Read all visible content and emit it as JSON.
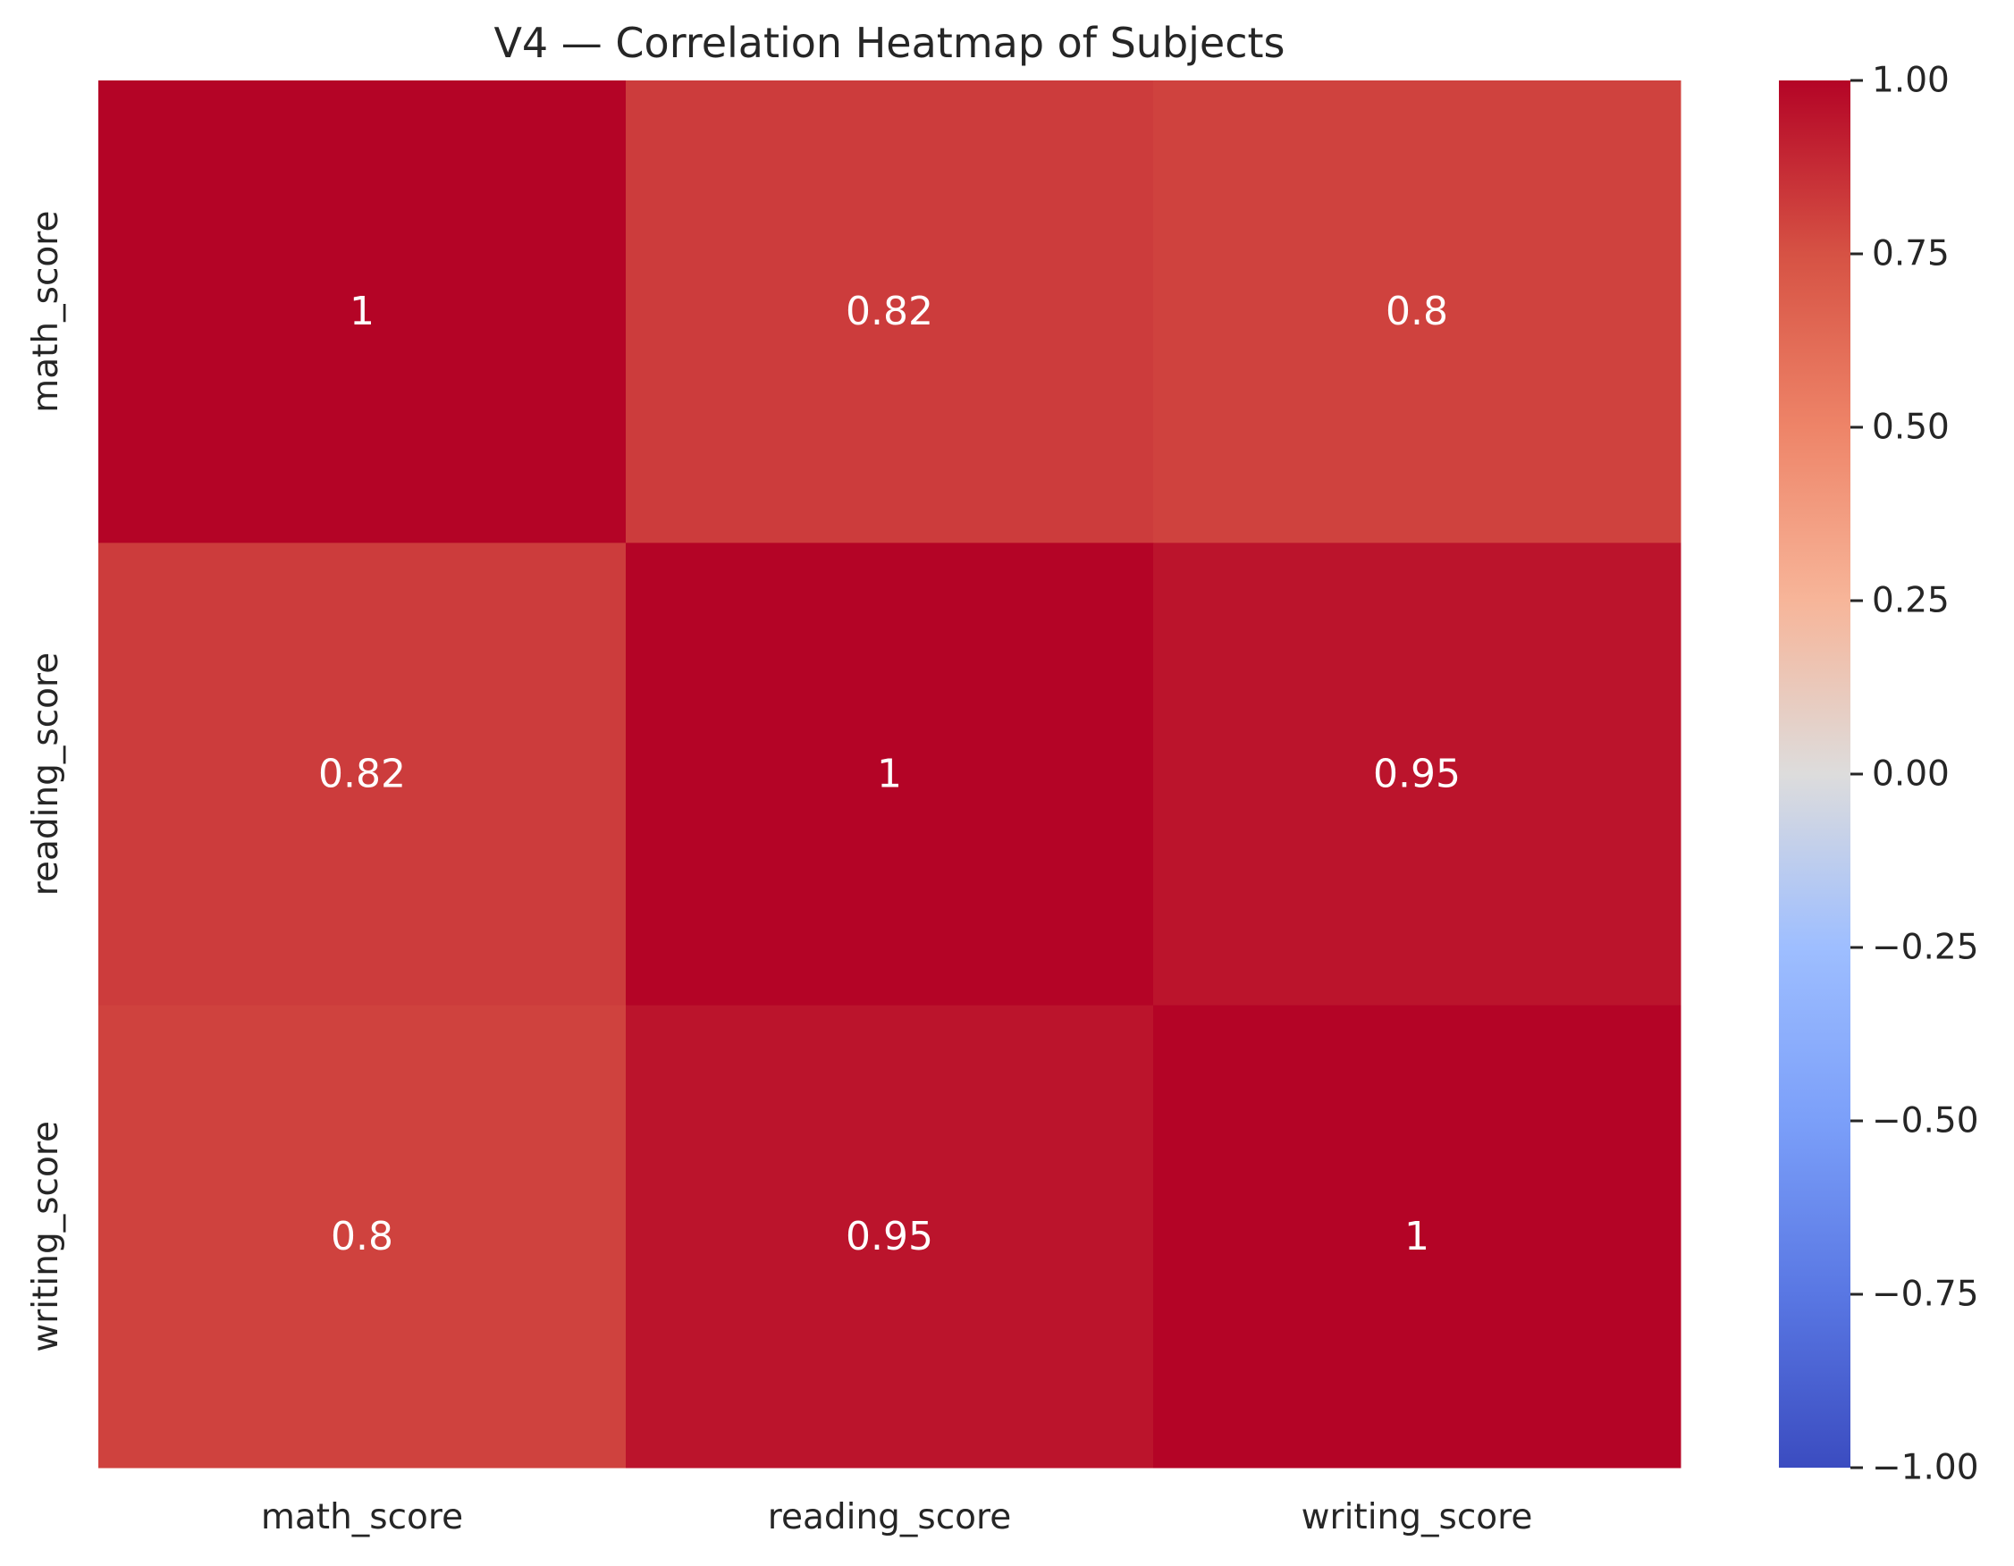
{
  "chart_data": {
    "type": "heatmap",
    "title": "V4 — Correlation Heatmap of Subjects",
    "x_labels": [
      "math_score",
      "reading_score",
      "writing_score"
    ],
    "y_labels": [
      "math_score",
      "reading_score",
      "writing_score"
    ],
    "values": [
      [
        1,
        0.82,
        0.8
      ],
      [
        0.82,
        1,
        0.95
      ],
      [
        0.8,
        0.95,
        1
      ]
    ],
    "annotations": [
      [
        "1",
        "0.82",
        "0.8"
      ],
      [
        "0.82",
        "1",
        "0.95"
      ],
      [
        "0.8",
        "0.95",
        "1"
      ]
    ],
    "colormap": "coolwarm",
    "colorbar": {
      "range": [
        -1,
        1
      ],
      "ticks": [
        1.0,
        0.75,
        0.5,
        0.25,
        0.0,
        -0.25,
        -0.5,
        -0.75,
        -1.0
      ],
      "tick_labels": [
        "1.00",
        "0.75",
        "0.50",
        "0.25",
        "0.00",
        "−0.25",
        "−0.50",
        "−0.75",
        "−1.00"
      ],
      "placement": "right"
    },
    "grid": false
  }
}
